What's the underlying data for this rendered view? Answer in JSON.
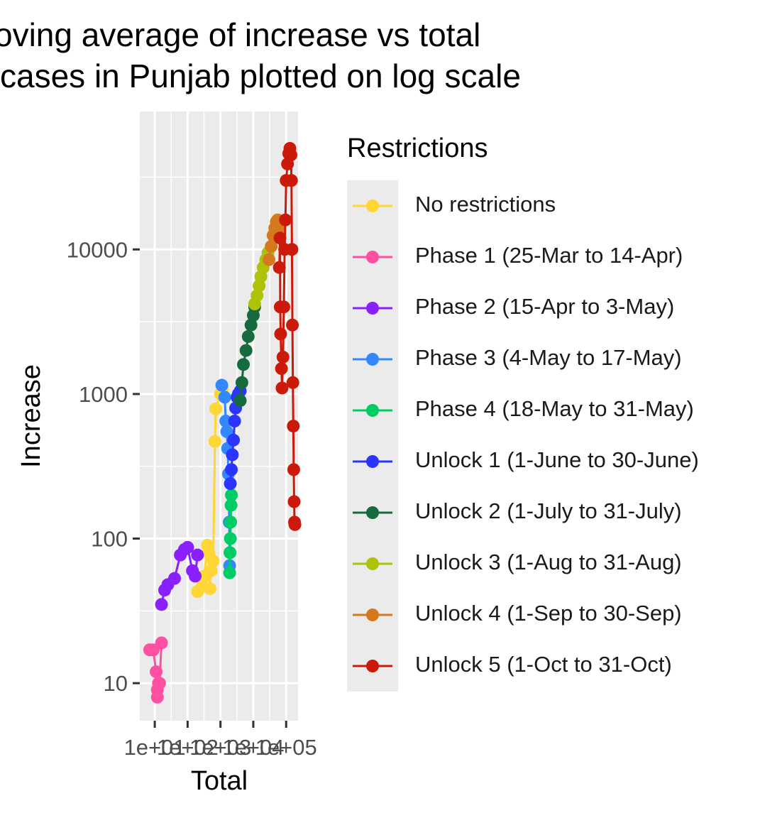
{
  "title": {
    "line1": "oving average of increase vs total",
    "line2": "cases in Punjab plotted on log scale"
  },
  "chart_data": {
    "type": "line",
    "xlabel": "Total",
    "ylabel": "Increase",
    "x_scale": "log",
    "y_scale": "log",
    "x_tick_labels": [
      "1e+01",
      "1e+02",
      "1e+03",
      "1e+04",
      "1e+05"
    ],
    "y_tick_labels": [
      "10",
      "100",
      "1000",
      "10000"
    ],
    "ylim": [
      5.5,
      90000
    ],
    "xlim": [
      3.5,
      230000
    ],
    "grid": true,
    "legend_title": "Restrictions",
    "legend_placement": "right",
    "series": [
      {
        "name": "No restrictions",
        "color": "#FFD633",
        "points": [
          [
            200,
            43
          ],
          [
            280,
            47
          ],
          [
            320,
            55
          ],
          [
            400,
            90
          ],
          [
            440,
            80
          ],
          [
            480,
            45
          ],
          [
            520,
            60
          ],
          [
            600,
            70
          ],
          [
            680,
            470
          ],
          [
            720,
            790
          ],
          [
            1000,
            1000
          ],
          [
            1150,
            1070
          ]
        ]
      },
      {
        "name": "Phase 1 (25-Mar to 14-Apr)",
        "color": "#FF4FA3",
        "points": [
          [
            7,
            17
          ],
          [
            9,
            17
          ],
          [
            11,
            12
          ],
          [
            12,
            9
          ],
          [
            12,
            8
          ],
          [
            13,
            10
          ],
          [
            14,
            10
          ],
          [
            16,
            19
          ]
        ]
      },
      {
        "name": "Phase 2 (15-Apr to 3-May)",
        "color": "#8A1FFF",
        "points": [
          [
            16,
            35
          ],
          [
            20,
            44
          ],
          [
            25,
            48
          ],
          [
            40,
            53
          ],
          [
            60,
            77
          ],
          [
            80,
            84
          ],
          [
            100,
            87
          ],
          [
            140,
            60
          ],
          [
            170,
            55
          ],
          [
            200,
            77
          ]
        ]
      },
      {
        "name": "Phase 3 (4-May to 17-May)",
        "color": "#3388FF",
        "points": [
          [
            1100,
            1150
          ],
          [
            1350,
            950
          ],
          [
            1450,
            650
          ],
          [
            1550,
            550
          ],
          [
            1650,
            420
          ],
          [
            1750,
            280
          ],
          [
            1850,
            130
          ],
          [
            1900,
            65
          ]
        ]
      },
      {
        "name": "Phase 4 (18-May to 31-May)",
        "color": "#00CC66",
        "points": [
          [
            1900,
            58
          ],
          [
            1950,
            80
          ],
          [
            2000,
            100
          ],
          [
            2050,
            130
          ],
          [
            2100,
            170
          ],
          [
            2150,
            200
          ]
        ]
      },
      {
        "name": "Unlock 1 (1-June to 30-June)",
        "color": "#2B35FF",
        "points": [
          [
            2000,
            240
          ],
          [
            2150,
            300
          ],
          [
            2300,
            380
          ],
          [
            2500,
            480
          ],
          [
            2700,
            650
          ],
          [
            2900,
            800
          ],
          [
            3200,
            950
          ],
          [
            3500,
            1000
          ],
          [
            4000,
            1050
          ]
        ]
      },
      {
        "name": "Unlock 2 (1-July to 31-July)",
        "color": "#156B3E",
        "points": [
          [
            4000,
            900
          ],
          [
            4500,
            1200
          ],
          [
            5000,
            1600
          ],
          [
            6000,
            2000
          ],
          [
            7000,
            2500
          ],
          [
            8500,
            3000
          ],
          [
            10000,
            3500
          ],
          [
            11000,
            4000
          ]
        ]
      },
      {
        "name": "Unlock 3 (1-Aug to 31-Aug)",
        "color": "#AEC20A",
        "points": [
          [
            11000,
            4200
          ],
          [
            13000,
            4800
          ],
          [
            15000,
            5600
          ],
          [
            17000,
            6500
          ],
          [
            20000,
            7500
          ],
          [
            24000,
            8500
          ],
          [
            28000,
            9500
          ]
        ]
      },
      {
        "name": "Unlock 4 (1-Sep to 30-Sep)",
        "color": "#D4791E",
        "points": [
          [
            30000,
            8500
          ],
          [
            35000,
            10500
          ],
          [
            40000,
            12500
          ],
          [
            45000,
            14000
          ],
          [
            50000,
            15500
          ],
          [
            55000,
            16000
          ],
          [
            60000,
            14000
          ]
        ]
      },
      {
        "name": "Unlock 5 (1-Oct to 31-Oct)",
        "color": "#CC1A0A",
        "points": [
          [
            62000,
            7500
          ],
          [
            65000,
            12000
          ],
          [
            66000,
            4000
          ],
          [
            68000,
            2600
          ],
          [
            72000,
            1500
          ],
          [
            75000,
            1100
          ],
          [
            80000,
            1800
          ],
          [
            85000,
            4000
          ],
          [
            90000,
            10000
          ],
          [
            95000,
            16000
          ],
          [
            100000,
            30000
          ],
          [
            110000,
            39000
          ],
          [
            120000,
            46000
          ],
          [
            130000,
            50000
          ],
          [
            140000,
            45000
          ],
          [
            145000,
            30000
          ],
          [
            150000,
            10000
          ],
          [
            155000,
            3000
          ],
          [
            160000,
            1200
          ],
          [
            165000,
            600
          ],
          [
            170000,
            300
          ],
          [
            175000,
            180
          ],
          [
            180000,
            130
          ],
          [
            185000,
            125
          ]
        ]
      }
    ]
  }
}
